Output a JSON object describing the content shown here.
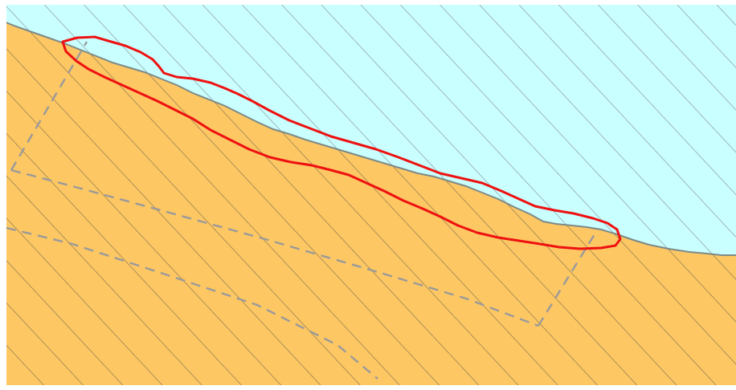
{
  "map": {
    "layers": [
      {
        "name": "water-area",
        "fill": "#c9fffe",
        "hatch": "#8c9aa3"
      },
      {
        "name": "land-area",
        "fill": "#fdc763",
        "hatch": "#8f7a52"
      },
      {
        "name": "shoreline",
        "stroke": "#7d8a88"
      },
      {
        "name": "boundary-dashed",
        "stroke": "#9a9a9a"
      },
      {
        "name": "highlight-outline",
        "stroke": "#ee1111"
      }
    ]
  }
}
